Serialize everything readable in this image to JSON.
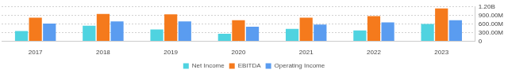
{
  "chart_data": {
    "type": "bar",
    "categories": [
      "2017",
      "2018",
      "2019",
      "2020",
      "2021",
      "2022",
      "2023"
    ],
    "series": [
      {
        "name": "Net Income",
        "color": "#4fd3e0",
        "values": [
          356000000,
          544000000,
          412000000,
          262000000,
          431000000,
          375000000,
          600000000
        ]
      },
      {
        "name": "EBITDA",
        "color": "#f57a1c",
        "values": [
          825000000,
          956000000,
          938000000,
          731000000,
          825000000,
          881000000,
          1144000000
        ]
      },
      {
        "name": "Operating Income",
        "color": "#5a9cf0",
        "values": [
          619000000,
          694000000,
          694000000,
          506000000,
          581000000,
          656000000,
          731000000
        ]
      }
    ],
    "ylim": [
      0,
      1200000000
    ],
    "yticks": [
      0,
      {
        "value": 300000000,
        "label": "300.00M"
      },
      {
        "value": 600000000,
        "label": "600.00M"
      },
      {
        "value": 900000000,
        "label": "900.00M"
      },
      {
        "value": 1200000000,
        "label": "1.20B"
      }
    ],
    "grid": true,
    "legend": "bottom"
  }
}
